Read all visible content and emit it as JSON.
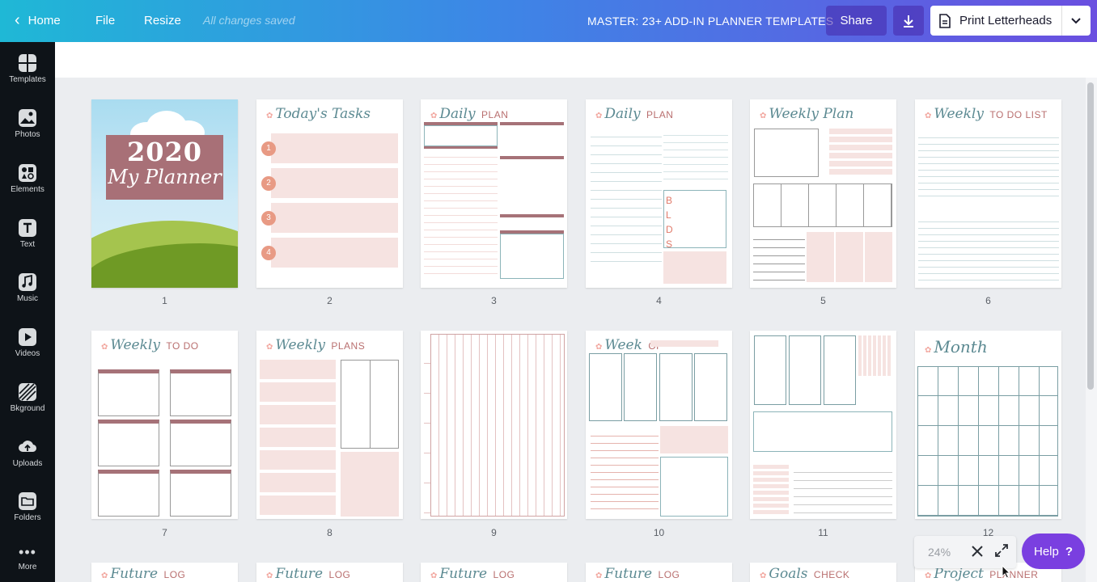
{
  "topbar": {
    "home_label": "Home",
    "file_label": "File",
    "resize_label": "Resize",
    "saved_status": "All changes saved",
    "doc_title": "MASTER: 23+ ADD-IN PLANNER TEMPLATES",
    "share_label": "Share",
    "print_label": "Print Letterheads"
  },
  "sidebar": {
    "items": [
      {
        "label": "Templates",
        "icon": "templates-icon"
      },
      {
        "label": "Photos",
        "icon": "photos-icon"
      },
      {
        "label": "Elements",
        "icon": "elements-icon"
      },
      {
        "label": "Text",
        "icon": "text-icon"
      },
      {
        "label": "Music",
        "icon": "music-icon"
      },
      {
        "label": "Videos",
        "icon": "videos-icon"
      },
      {
        "label": "Bkground",
        "icon": "background-icon"
      },
      {
        "label": "Uploads",
        "icon": "uploads-icon"
      },
      {
        "label": "Folders",
        "icon": "folders-icon"
      },
      {
        "label": "More",
        "icon": "more-icon"
      }
    ]
  },
  "pages": [
    {
      "number": "1",
      "title": "",
      "sub": "",
      "cover_year": "2020",
      "cover_sub": "My Planner"
    },
    {
      "number": "2",
      "title": "Today's Tasks",
      "sub": ""
    },
    {
      "number": "3",
      "title": "Daily",
      "sub": "PLAN"
    },
    {
      "number": "4",
      "title": "Daily",
      "sub": "PLAN"
    },
    {
      "number": "5",
      "title": "Weekly Plan",
      "sub": ""
    },
    {
      "number": "6",
      "title": "Weekly",
      "sub": "TO DO LIST"
    },
    {
      "number": "7",
      "title": "Weekly",
      "sub": "TO DO"
    },
    {
      "number": "8",
      "title": "Weekly",
      "sub": "PLANS"
    },
    {
      "number": "9",
      "title": "",
      "sub": ""
    },
    {
      "number": "10",
      "title": "Week",
      "sub": "OF"
    },
    {
      "number": "11",
      "title": "",
      "sub": ""
    },
    {
      "number": "12",
      "title": "Month",
      "sub": ""
    },
    {
      "number": "",
      "title": "Future",
      "sub": "LOG"
    },
    {
      "number": "",
      "title": "Future",
      "sub": "LOG"
    },
    {
      "number": "",
      "title": "Future",
      "sub": "LOG"
    },
    {
      "number": "",
      "title": "Future",
      "sub": "LOG"
    },
    {
      "number": "",
      "title": "Goals",
      "sub": "CHECK"
    },
    {
      "number": "",
      "title": "Project",
      "sub": "PLANNER"
    }
  ],
  "page2_numbers": [
    "1",
    "2",
    "3",
    "4"
  ],
  "page4_letters": [
    "B",
    "L",
    "D",
    "S"
  ],
  "zoom": {
    "value": "24%"
  },
  "help": {
    "label": "Help",
    "icon_glyph": "?"
  },
  "colors": {
    "accent_purple": "#7a3fe0",
    "rose": "#a67278",
    "pink": "#f6e3e1",
    "teal": "#5c8a92"
  }
}
